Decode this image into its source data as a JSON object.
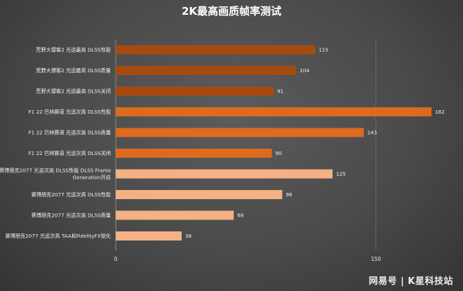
{
  "watermark": "网易号 | K星科技站",
  "colors": {
    "rdr2": "#a64b0f",
    "f122": "#dd6a1f",
    "cp2077": "#f4b183"
  },
  "chart_data": {
    "type": "bar",
    "orientation": "horizontal",
    "title": "2K最高画质帧率测试",
    "xlim": [
      0,
      200
    ],
    "xticks": [
      0,
      150
    ],
    "grid": true,
    "bars": [
      {
        "label": [
          "荒野大镖客2 光追最高 DLSS性能"
        ],
        "value": 115,
        "group": "rdr2"
      },
      {
        "label": [
          "荒野大镖客2 光追最高 DLSS质量"
        ],
        "value": 104,
        "group": "rdr2"
      },
      {
        "label": [
          "荒野大镖客2 光追最高 DLSS关闭"
        ],
        "value": 91,
        "group": "rdr2"
      },
      {
        "label": [
          "F1 22 巴林赛道 光追次高 DLSS性能"
        ],
        "value": 182,
        "group": "f122"
      },
      {
        "label": [
          "F1 22 巴林赛道 光追次高 DLSS质量"
        ],
        "value": 143,
        "group": "f122"
      },
      {
        "label": [
          "F1 22 巴林赛道 光追次高 DLSS关闭"
        ],
        "value": 90,
        "group": "f122"
      },
      {
        "label": [
          "赛博朋克2077 光追次高 DLSS性能 DLSS Frame",
          "Generation开启"
        ],
        "value": 125,
        "group": "cp2077"
      },
      {
        "label": [
          "赛博朋克2077 光追次高 DLSS性能"
        ],
        "value": 96,
        "group": "cp2077"
      },
      {
        "label": [
          "赛博朋克2077 光追次高 DLSS质量"
        ],
        "value": 68,
        "group": "cp2077"
      },
      {
        "label": [
          "赛博朋克2077 光追次高 TAA和FidelityFX锐化"
        ],
        "value": 38,
        "group": "cp2077"
      }
    ]
  }
}
